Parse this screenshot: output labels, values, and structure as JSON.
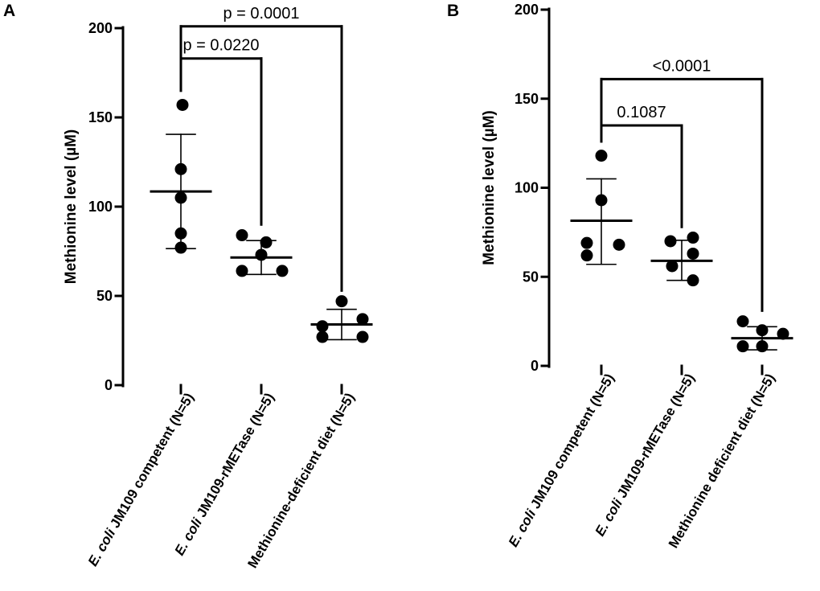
{
  "chart_data": [
    {
      "panel": "A",
      "type": "scatter",
      "ylabel": "Methionine level (µM)",
      "ylim": [
        0,
        200
      ],
      "yticks": [
        0,
        50,
        100,
        150,
        200
      ],
      "categories": [
        {
          "prefix": "E. coli",
          "rest": " JM109 competent (N=5)"
        },
        {
          "prefix": "E. coli",
          "rest": " JM109-rMETase (N=5)"
        },
        {
          "prefix": "",
          "rest": "Methionine-deficient diet (N=5)"
        }
      ],
      "groups": [
        {
          "points": [
            157,
            121,
            105,
            85,
            77
          ],
          "mean": 108.5,
          "sd_low": 76.5,
          "sd_high": 140.5
        },
        {
          "points": [
            84,
            80,
            73,
            64,
            64
          ],
          "mean": 71.5,
          "sd_low": 62,
          "sd_high": 81
        },
        {
          "points": [
            47,
            37,
            33,
            27,
            27
          ],
          "mean": 34,
          "sd_low": 25.5,
          "sd_high": 42.5
        }
      ],
      "comparisons": [
        {
          "from": 0,
          "to": 1,
          "label": "p = 0.0220",
          "level": 183
        },
        {
          "from": 0,
          "to": 2,
          "label": "p = 0.0001",
          "level": 201
        }
      ]
    },
    {
      "panel": "B",
      "type": "scatter",
      "ylabel": "Methionine level (µM)",
      "ylim": [
        0,
        200
      ],
      "yticks": [
        0,
        50,
        100,
        150,
        200
      ],
      "categories": [
        {
          "prefix": "E. coli",
          "rest": " JM109 competent (N=5)"
        },
        {
          "prefix": "E. coli",
          "rest": " JM109-rMETase (N=5)"
        },
        {
          "prefix": "",
          "rest": "Methionine deficient diet (N=5)"
        }
      ],
      "groups": [
        {
          "points": [
            118,
            93,
            69,
            68,
            62
          ],
          "mean": 81.5,
          "sd_low": 57,
          "sd_high": 105
        },
        {
          "points": [
            72,
            70,
            63,
            56,
            48
          ],
          "mean": 59,
          "sd_low": 48,
          "sd_high": 70.5
        },
        {
          "points": [
            25,
            20,
            18,
            11,
            11
          ],
          "mean": 15.5,
          "sd_low": 9,
          "sd_high": 22
        }
      ],
      "comparisons": [
        {
          "from": 0,
          "to": 1,
          "label": "0.1087",
          "level": 135
        },
        {
          "from": 0,
          "to": 2,
          "label": "<0.0001",
          "level": 161
        }
      ]
    }
  ]
}
